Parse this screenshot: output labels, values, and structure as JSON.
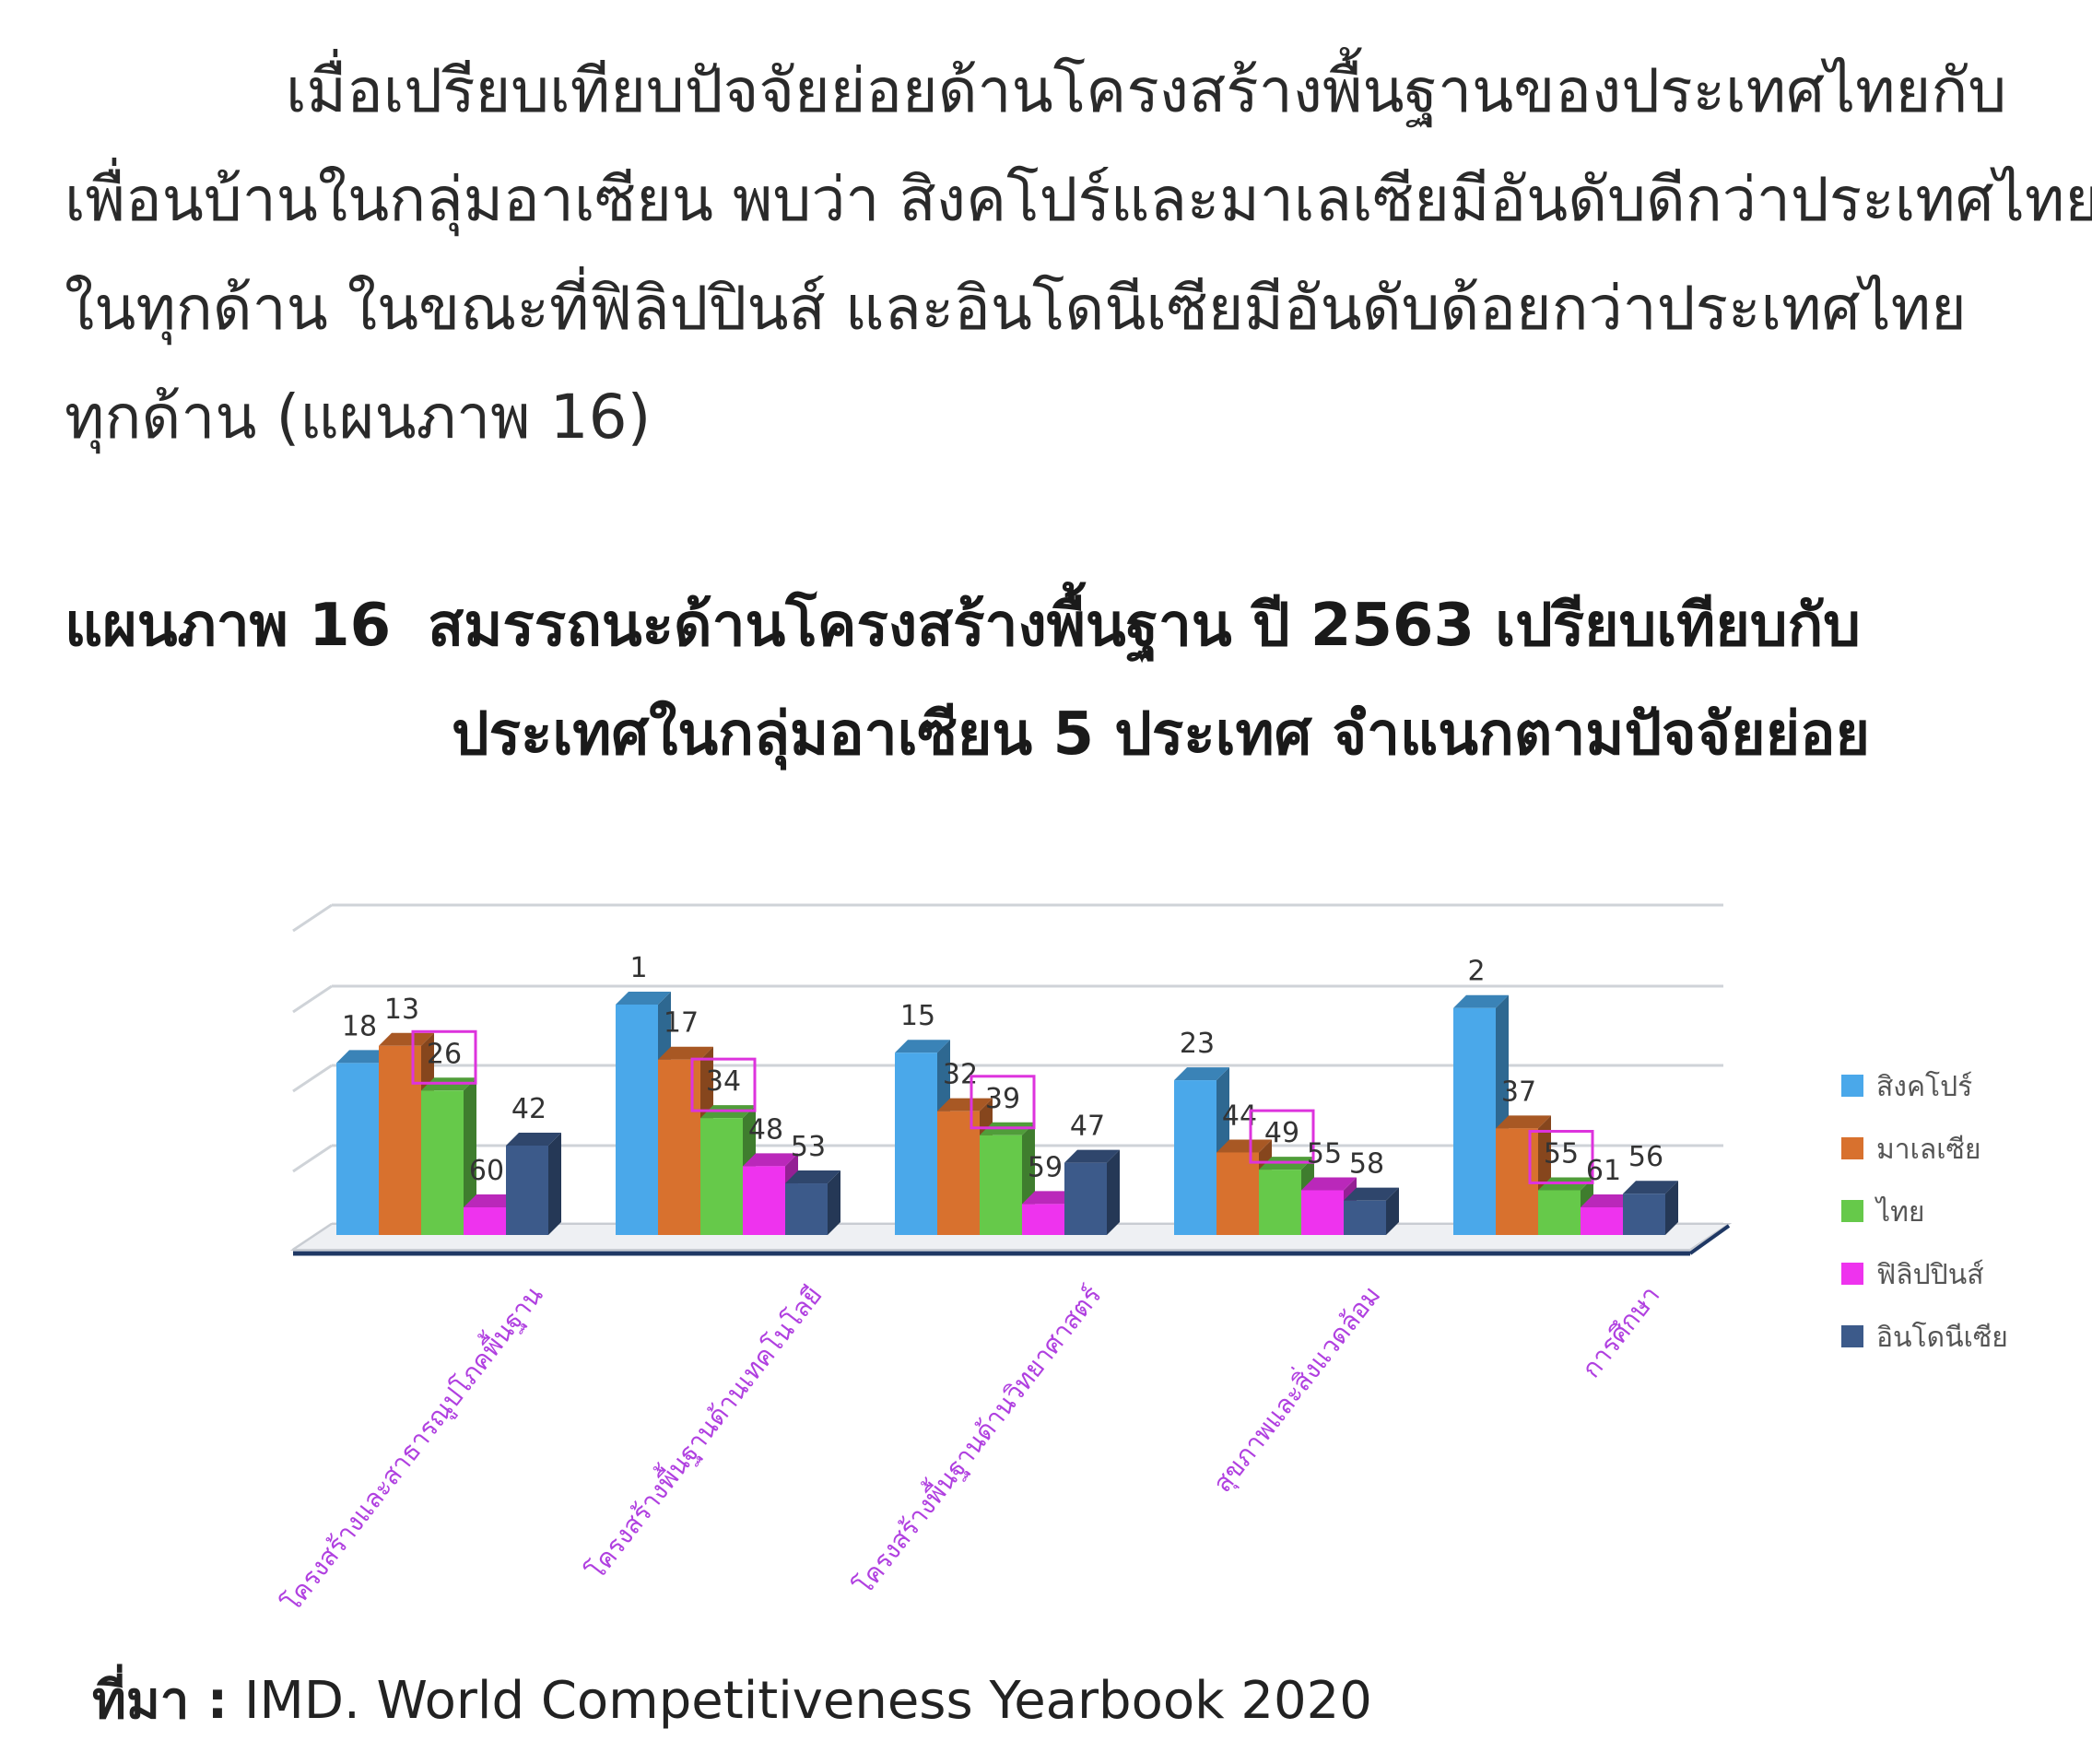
{
  "paragraph": {
    "lines": [
      "เมื่อเปรียบเทียบปัจจัยย่อยด้านโครงสร้างพื้นฐานของประเทศไทยกับ",
      "เพื่อนบ้านในกลุ่มอาเซียน พบว่า สิงคโปร์และมาเลเซียมีอันดับดีกว่าประเทศไทย",
      "ในทุกด้าน ในขณะที่ฟิลิปปินส์ และอินโดนีเซียมีอันดับด้อยกว่าประเทศไทย",
      "ทุกด้าน (แผนภาพ 16)"
    ]
  },
  "caption": {
    "number": "แผนภาพ 16",
    "line1": "สมรรถนะด้านโครงสร้างพื้นฐาน ปี 2563 เปรียบเทียบกับ",
    "line2": "ประเทศในกลุ่มอาเซียน 5 ประเทศ จำแนกตามปัจจัยย่อย"
  },
  "source": {
    "label": "ที่มา :",
    "text": "IMD. World Competitiveness Yearbook 2020"
  },
  "chart_data": {
    "type": "bar",
    "categories": [
      "โครงสร้างและสาธารณูปโภคพื้นฐาน",
      "โครงสร้างพื้นฐานด้านเทคโนโลยี",
      "โครงสร้างพื้นฐานด้านวิทยาศาสตร์",
      "สุขภาพและสิ่งแวดล้อม",
      "การศึกษา"
    ],
    "series": [
      {
        "name": "สิงคโปร์",
        "color": "#4aa8ea",
        "values": [
          18,
          1,
          15,
          23,
          2
        ]
      },
      {
        "name": "มาเลเซีย",
        "color": "#d8712e",
        "values": [
          13,
          17,
          32,
          44,
          37
        ]
      },
      {
        "name": "ไทย",
        "color": "#66c94a",
        "values": [
          26,
          34,
          39,
          49,
          55
        ]
      },
      {
        "name": "ฟิลิปปินส์",
        "color": "#ee33ee",
        "values": [
          60,
          48,
          59,
          55,
          61
        ]
      },
      {
        "name": "อินโดนีเซีย",
        "color": "#3c5a8a",
        "values": [
          42,
          53,
          47,
          58,
          56
        ]
      }
    ],
    "highlighted_series": "ไทย",
    "highlight_color": "#dd33dd",
    "category_label_color": "#b040e0",
    "grid": true,
    "legend": "right",
    "bar_style": "3d"
  }
}
